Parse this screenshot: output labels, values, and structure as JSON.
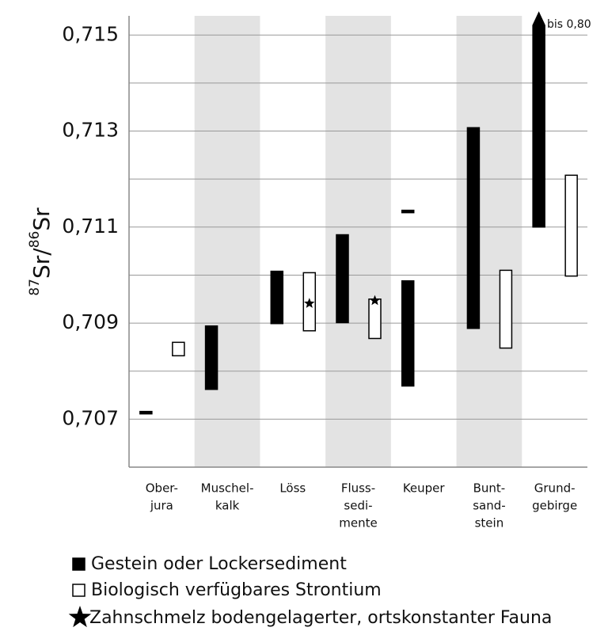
{
  "chart_data": {
    "type": "range-bar",
    "ylabel_parts": [
      "87",
      "Sr/",
      "86",
      "Sr"
    ],
    "categories": [
      [
        "Ober-",
        "jura"
      ],
      [
        "Muschel-",
        "kalk"
      ],
      [
        "Löss"
      ],
      [
        "Fluss-",
        "sedi-",
        "mente"
      ],
      [
        "Keuper"
      ],
      [
        "Bunt-",
        "sand-",
        "stein"
      ],
      [
        "Grund-",
        "gebirge"
      ]
    ],
    "shaded_categories": [
      1,
      3,
      5
    ],
    "shade_color": "#e3e3e3",
    "series": [
      {
        "name": "Gestein oder Lockersediment",
        "color": "#000000",
        "values": [
          [
            [
              0.70711,
              0.70716
            ]
          ],
          [
            [
              0.70762,
              0.70894
            ]
          ],
          [
            [
              0.70899,
              0.71008
            ]
          ],
          [
            [
              0.70901,
              0.71084
            ]
          ],
          [
            [
              0.70769,
              0.70988
            ],
            [
              0.7113,
              0.71135
            ]
          ],
          [
            [
              0.70889,
              0.71307
            ]
          ],
          [
            [
              0.711,
              0.8
            ]
          ]
        ]
      },
      {
        "name": "Biologisch verfügbares Strontium",
        "color": "#ffffff",
        "values": [
          [
            [
              0.70832,
              0.7086
            ]
          ],
          null,
          [
            [
              0.70884,
              0.71005
            ]
          ],
          [
            [
              0.70868,
              0.7095
            ]
          ],
          null,
          [
            [
              0.70848,
              0.7101
            ]
          ],
          [
            [
              0.70998,
              0.71208
            ]
          ]
        ]
      }
    ],
    "stars": {
      "name": "Zahnschmelz bodengelagerter, ortskonstanter Fauna",
      "color": "#000000",
      "values": [
        null,
        null,
        0.70941,
        0.70947,
        null,
        null,
        null
      ]
    },
    "annotation": "bis 0,80",
    "ylim": [
      0.706,
      0.7154
    ],
    "yticks": [
      {
        "value": 0.707,
        "label": "0,707"
      },
      {
        "value": 0.709,
        "label": "0,709"
      },
      {
        "value": 0.711,
        "label": "0,711"
      },
      {
        "value": 0.713,
        "label": "0,713"
      },
      {
        "value": 0.715,
        "label": "0,715"
      }
    ],
    "minor_yticks": [
      0.706,
      0.708,
      0.71,
      0.712,
      0.714
    ],
    "grid": true
  }
}
